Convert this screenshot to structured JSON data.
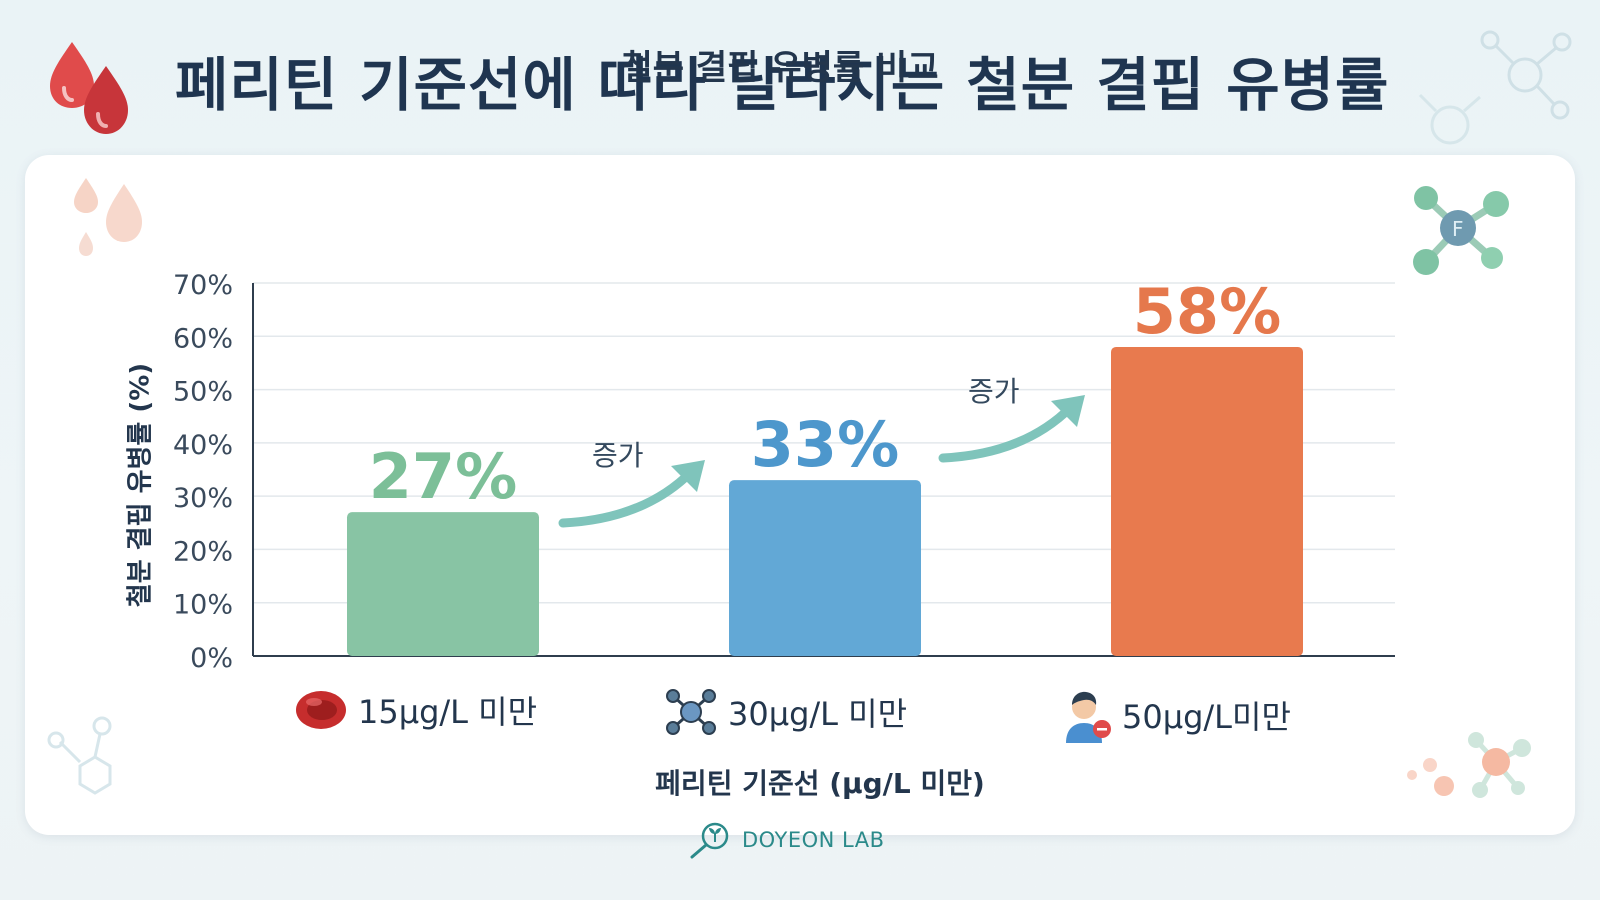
{
  "page": {
    "title": "페리틴 기준선에 따라 달라지는 철분 결핍 유병률",
    "brand": "DOYEON LAB",
    "increase_label": "증가"
  },
  "colors": {
    "title": "#1f3550",
    "green": "#88c4a4",
    "green_label": "#7cbf98",
    "blue": "#62a8d6",
    "blue_label": "#4d97cc",
    "orange": "#e87a4e",
    "orange_label": "#e5784c",
    "arrow": "#7fc4bb",
    "brand": "#2b8a8a"
  },
  "chart_data": {
    "type": "bar",
    "title": "철분 결핍 유병률 비교",
    "xlabel": "페리틴 기준선 (μg/L 미만)",
    "ylabel": "철분 결핍 유병률 (%)",
    "ylim": [
      0,
      70
    ],
    "yticks": [
      "0%",
      "10%",
      "20%",
      "30%",
      "40%",
      "50%",
      "60%",
      "70%"
    ],
    "categories": [
      "15μg/L 미만",
      "30μg/L 미만",
      "50μg/L미만"
    ],
    "values": [
      27,
      33,
      58
    ],
    "value_labels": [
      "27%",
      "33%",
      "58%"
    ],
    "category_icons": [
      "red-blood-cell-icon",
      "ferritin-molecule-icon",
      "person-icon"
    ],
    "grid": true,
    "legend": "none"
  }
}
